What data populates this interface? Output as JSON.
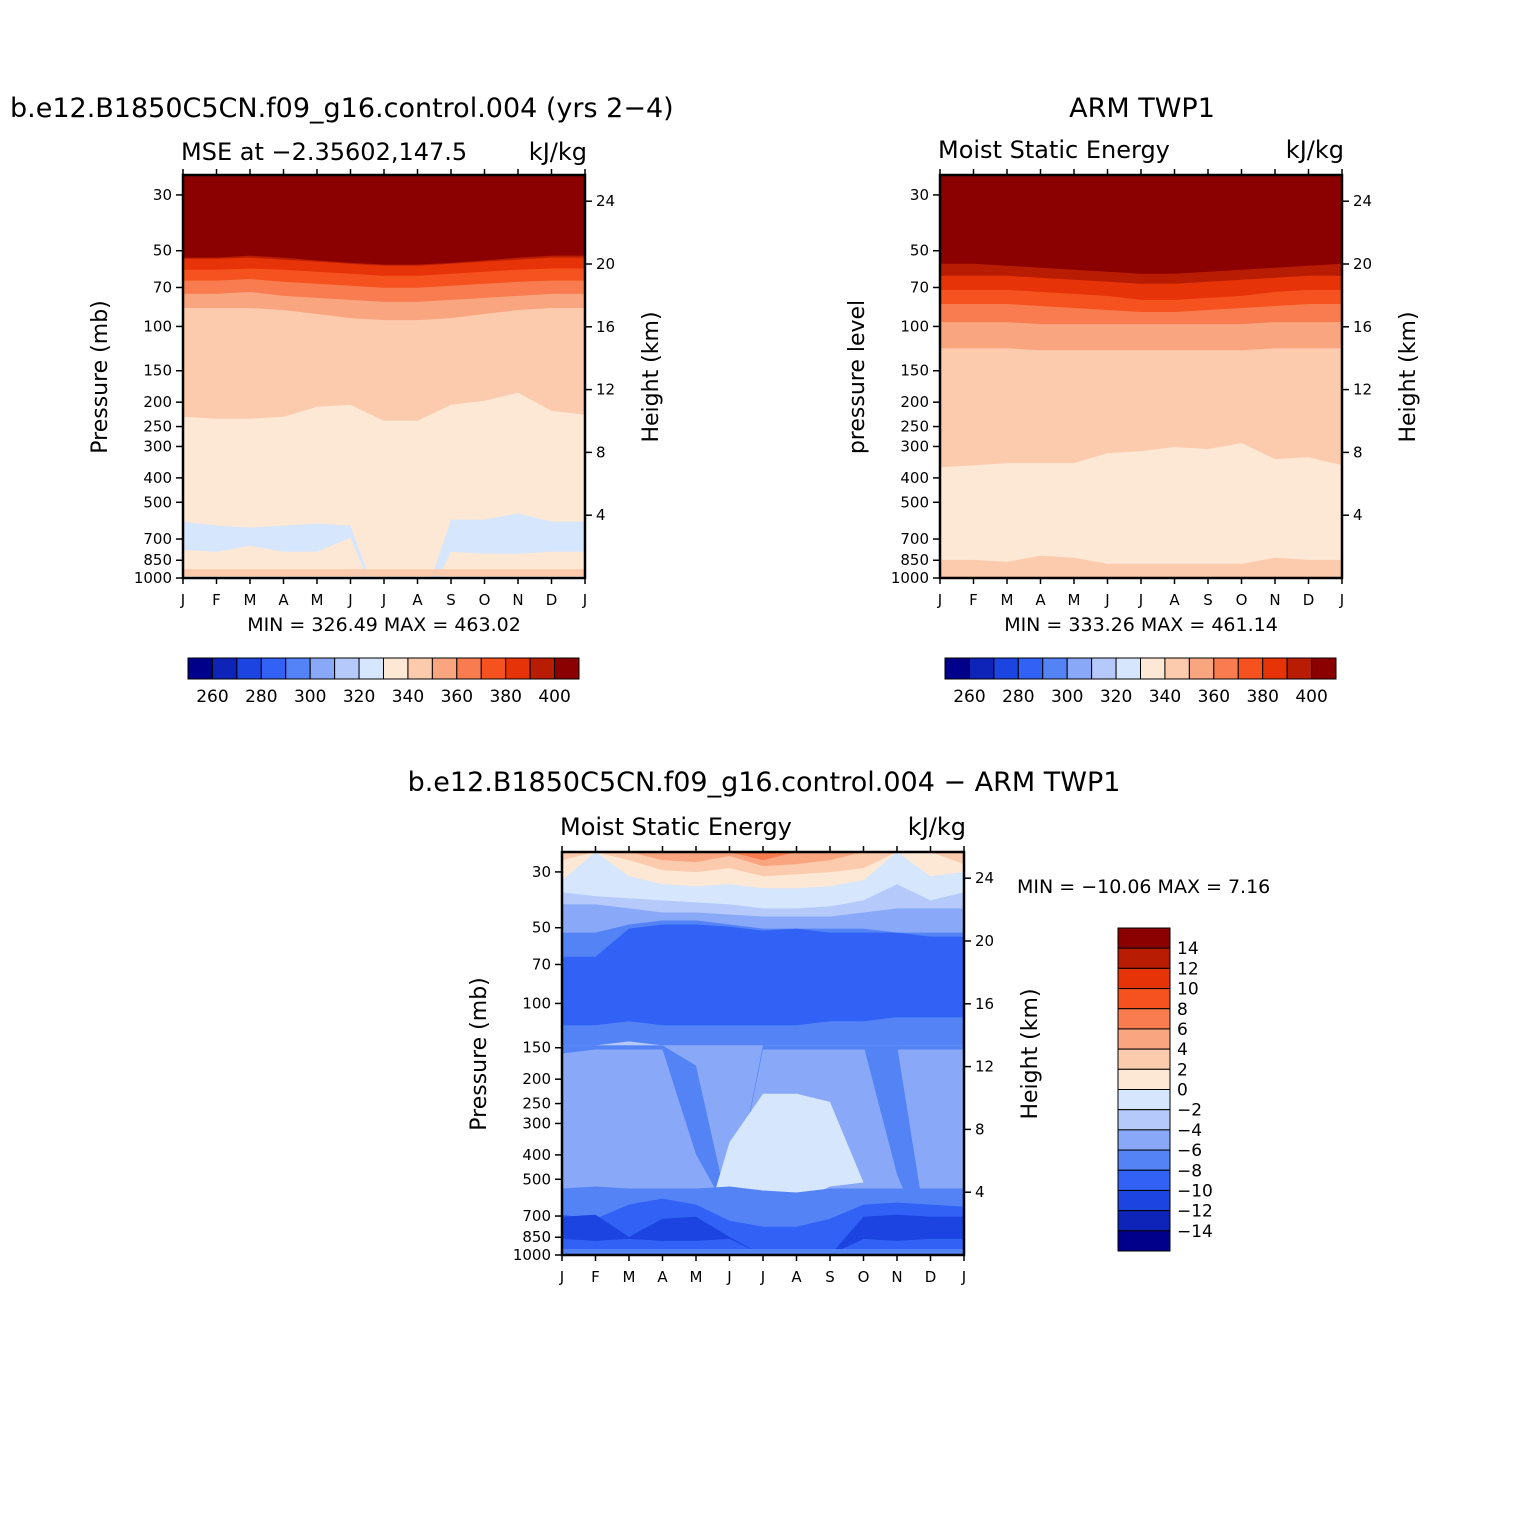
{
  "palette": {
    "abs_colors": [
      "#00008b",
      "#0e23b8",
      "#1c44e0",
      "#3162f5",
      "#5483f6",
      "#89a9f8",
      "#b5cafb",
      "#d5e6fd",
      "#fde8d6",
      "#fccaac",
      "#f9a680",
      "#f87c4f",
      "#f5521f",
      "#e63308",
      "#b81c02",
      "#8b0000"
    ],
    "abs_labels": [
      "260",
      "280",
      "300",
      "320",
      "340",
      "360",
      "380",
      "400"
    ],
    "diff_colors": [
      "#00008b",
      "#0e23b8",
      "#1c44e0",
      "#3162f5",
      "#5483f6",
      "#89a9f8",
      "#b5cafb",
      "#d5e6fd",
      "#fde8d6",
      "#fccaac",
      "#f9a680",
      "#f87c4f",
      "#f5521f",
      "#e63308",
      "#b81c02",
      "#8b0000"
    ],
    "diff_labels": [
      "14",
      "12",
      "10",
      "8",
      "6",
      "4",
      "2",
      "0",
      "−2",
      "−4",
      "−6",
      "−8",
      "−10",
      "−12",
      "−14"
    ]
  },
  "axes": {
    "months": [
      "J",
      "F",
      "M",
      "A",
      "M",
      "J",
      "J",
      "A",
      "S",
      "O",
      "N",
      "D",
      "J"
    ],
    "pressure_ticks": [
      "30",
      "50",
      "70",
      "100",
      "150",
      "200",
      "250",
      "300",
      "400",
      "500",
      "700",
      "850",
      "1000"
    ],
    "height_ticks": [
      "24",
      "20",
      "16",
      "12",
      "8",
      "4"
    ]
  },
  "chart_data": [
    {
      "type": "heatmap",
      "title": "b.e12.B1850C5CN.f09_g16.control.004 (yrs 2−4)",
      "subtitle_left": "MSE at −2.35602,147.5",
      "subtitle_right": "kJ/kg",
      "ylabel": "Pressure (mb)",
      "y2label": "Height (km)",
      "stats": "MIN = 326.49 MAX = 463.02",
      "min": 326.49,
      "max": 463.02,
      "colorbar_levels": [
        260,
        270,
        280,
        290,
        300,
        310,
        320,
        330,
        340,
        350,
        360,
        370,
        380,
        390,
        400
      ]
    },
    {
      "type": "heatmap",
      "title": "ARM TWP1",
      "subtitle_left": "Moist Static Energy",
      "subtitle_right": "kJ/kg",
      "ylabel": "pressure level",
      "y2label": "Height (km)",
      "stats": "MIN = 333.26 MAX = 461.14",
      "min": 333.26,
      "max": 461.14,
      "colorbar_levels": [
        260,
        270,
        280,
        290,
        300,
        310,
        320,
        330,
        340,
        350,
        360,
        370,
        380,
        390,
        400
      ]
    },
    {
      "type": "heatmap",
      "title": "b.e12.B1850C5CN.f09_g16.control.004 − ARM TWP1",
      "subtitle_left": "Moist Static Energy",
      "subtitle_right": "kJ/kg",
      "ylabel": "Pressure (mb)",
      "y2label": "Height (km)",
      "stats": "MIN = −10.06 MAX = 7.16",
      "min": -10.06,
      "max": 7.16,
      "colorbar_levels": [
        -14,
        -12,
        -10,
        -8,
        -6,
        -4,
        -2,
        0,
        2,
        4,
        6,
        8,
        10,
        12,
        14
      ]
    }
  ]
}
